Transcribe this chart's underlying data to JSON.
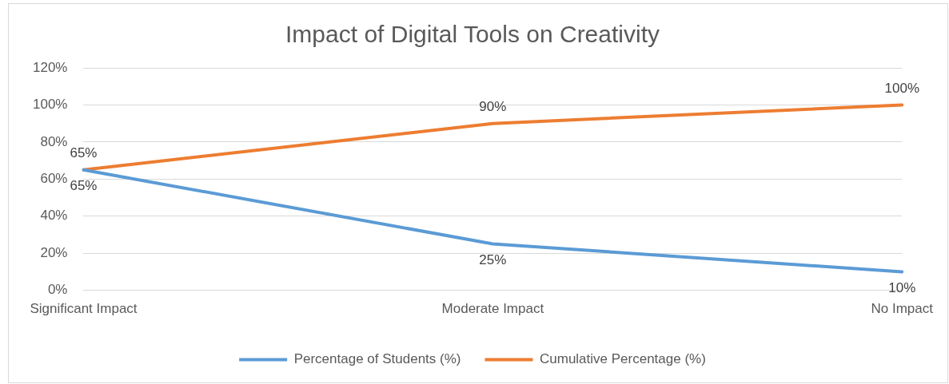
{
  "chart_data": {
    "type": "line",
    "title": "Impact of Digital Tools on Creativity",
    "categories": [
      "Significant Impact",
      "Moderate Impact",
      "No Impact"
    ],
    "series": [
      {
        "name": "Percentage of Students (%)",
        "color": "#5b9bd5",
        "values": [
          65,
          25,
          10
        ],
        "value_labels": [
          "65%",
          "25%",
          "10%"
        ]
      },
      {
        "name": "Cumulative Percentage (%)",
        "color": "#ed7d31",
        "values": [
          65,
          90,
          100
        ],
        "value_labels": [
          "65%",
          "90%",
          "100%"
        ]
      }
    ],
    "ylim": [
      0,
      120
    ],
    "yticks": [
      {
        "value": 0,
        "label": "0%"
      },
      {
        "value": 20,
        "label": "20%"
      },
      {
        "value": 40,
        "label": "40%"
      },
      {
        "value": 60,
        "label": "60%"
      },
      {
        "value": 80,
        "label": "80%"
      },
      {
        "value": 100,
        "label": "100%"
      },
      {
        "value": 120,
        "label": "120%"
      }
    ],
    "grid": "y",
    "legend": "bottom",
    "marker": "none",
    "line_style": "solid"
  }
}
